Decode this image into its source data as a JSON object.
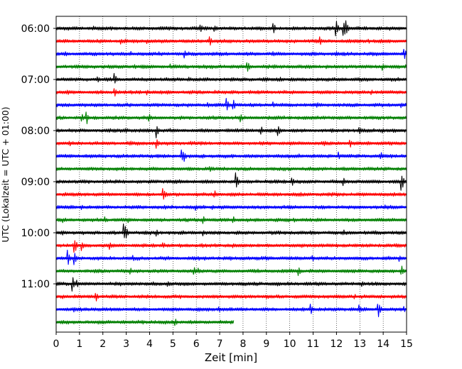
{
  "chart_data": {
    "type": "line",
    "title": "",
    "xlabel": "Zeit  [min]",
    "ylabel": "UTC (Lokalzeit = UTC + 01:00)",
    "xlim": [
      0,
      15
    ],
    "x_ticks": [
      0,
      1,
      2,
      3,
      4,
      5,
      6,
      7,
      8,
      9,
      10,
      11,
      12,
      13,
      14,
      15
    ],
    "y_tick_labels": [
      "06:00",
      "07:00",
      "08:00",
      "09:00",
      "10:00",
      "11:00"
    ],
    "y_tick_trace_index": [
      0,
      4,
      8,
      12,
      16,
      20
    ],
    "trace_minutes": 15,
    "grid": "vertical dotted",
    "color_cycle": [
      "#000000",
      "#ff0000",
      "#0000ff",
      "#008000"
    ],
    "traces": [
      {
        "start": "06:00",
        "end_min": 15,
        "color": "#000000",
        "events": [
          [
            6.2,
            0.55
          ],
          [
            6.8,
            0.45
          ],
          [
            9.3,
            0.7
          ],
          [
            12.0,
            0.9
          ],
          [
            12.4,
            1.0
          ],
          [
            12.3,
            0.8
          ],
          [
            1.6,
            0.25
          ],
          [
            5.4,
            0.2
          ],
          [
            14.3,
            0.25
          ]
        ]
      },
      {
        "start": "06:15",
        "end_min": 15,
        "color": "#ff0000",
        "events": [
          [
            0.5,
            0.3
          ],
          [
            2.8,
            0.35
          ],
          [
            3.9,
            0.35
          ],
          [
            6.6,
            0.55
          ],
          [
            11.3,
            0.6
          ],
          [
            13.4,
            0.25
          ],
          [
            9.0,
            0.2
          ]
        ]
      },
      {
        "start": "06:30",
        "end_min": 15,
        "color": "#0000ff",
        "events": [
          [
            0.4,
            0.35
          ],
          [
            3.2,
            0.3
          ],
          [
            4.4,
            0.25
          ],
          [
            5.5,
            0.55
          ],
          [
            9.3,
            0.3
          ],
          [
            12.0,
            0.25
          ],
          [
            14.9,
            0.7
          ]
        ]
      },
      {
        "start": "06:45",
        "end_min": 15,
        "color": "#008000",
        "events": [
          [
            1.3,
            0.25
          ],
          [
            3.4,
            0.3
          ],
          [
            4.9,
            0.35
          ],
          [
            8.2,
            0.7
          ],
          [
            11.6,
            0.3
          ],
          [
            14.0,
            0.45
          ]
        ]
      },
      {
        "start": "07:00",
        "end_min": 15,
        "color": "#000000",
        "events": [
          [
            1.8,
            0.3
          ],
          [
            2.5,
            0.7
          ],
          [
            5.7,
            0.25
          ],
          [
            9.6,
            0.3
          ],
          [
            13.0,
            0.2
          ]
        ]
      },
      {
        "start": "07:15",
        "end_min": 15,
        "color": "#ff0000",
        "events": [
          [
            0.5,
            0.35
          ],
          [
            2.5,
            0.55
          ],
          [
            3.9,
            0.3
          ],
          [
            6.8,
            0.25
          ],
          [
            11.7,
            0.3
          ],
          [
            13.5,
            0.3
          ]
        ]
      },
      {
        "start": "07:30",
        "end_min": 15,
        "color": "#0000ff",
        "events": [
          [
            6.5,
            0.45
          ],
          [
            7.3,
            0.75
          ],
          [
            7.6,
            0.55
          ],
          [
            9.3,
            0.4
          ],
          [
            11.2,
            0.3
          ],
          [
            14.8,
            0.3
          ]
        ]
      },
      {
        "start": "07:45",
        "end_min": 15,
        "color": "#008000",
        "events": [
          [
            1.3,
            0.85
          ],
          [
            1.1,
            0.5
          ],
          [
            4.0,
            0.45
          ],
          [
            7.9,
            0.6
          ],
          [
            14.2,
            0.25
          ]
        ]
      },
      {
        "start": "08:00",
        "end_min": 15,
        "color": "#000000",
        "events": [
          [
            3.0,
            0.4
          ],
          [
            4.3,
            0.8
          ],
          [
            4.9,
            0.3
          ],
          [
            8.8,
            0.45
          ],
          [
            9.5,
            0.9
          ],
          [
            13.0,
            0.55
          ],
          [
            14.0,
            0.3
          ]
        ]
      },
      {
        "start": "08:15",
        "end_min": 15,
        "color": "#ff0000",
        "events": [
          [
            0.6,
            0.35
          ],
          [
            3.2,
            0.3
          ],
          [
            4.3,
            0.75
          ],
          [
            5.8,
            0.3
          ],
          [
            11.5,
            0.4
          ],
          [
            12.6,
            0.45
          ]
        ]
      },
      {
        "start": "08:30",
        "end_min": 15,
        "color": "#0000ff",
        "events": [
          [
            5.4,
            0.7
          ],
          [
            5.5,
            0.6
          ],
          [
            6.3,
            0.35
          ],
          [
            12.1,
            0.45
          ],
          [
            13.9,
            0.5
          ],
          [
            10.4,
            0.25
          ]
        ]
      },
      {
        "start": "08:45",
        "end_min": 15,
        "color": "#008000",
        "events": [
          [
            6.6,
            0.35
          ],
          [
            14.1,
            0.25
          ],
          [
            3.0,
            0.2
          ]
        ]
      },
      {
        "start": "09:00",
        "end_min": 15,
        "color": "#000000",
        "events": [
          [
            7.7,
            1.0
          ],
          [
            10.1,
            0.7
          ],
          [
            12.3,
            0.6
          ],
          [
            14.8,
            1.0
          ],
          [
            2.9,
            0.3
          ],
          [
            5.1,
            0.3
          ]
        ]
      },
      {
        "start": "09:15",
        "end_min": 15,
        "color": "#ff0000",
        "events": [
          [
            4.6,
            0.9
          ],
          [
            6.8,
            0.4
          ],
          [
            10.5,
            0.3
          ],
          [
            13.2,
            0.25
          ],
          [
            0.4,
            0.25
          ]
        ]
      },
      {
        "start": "09:30",
        "end_min": 15,
        "color": "#0000ff",
        "events": [
          [
            1.1,
            0.3
          ],
          [
            6.0,
            0.35
          ],
          [
            6.7,
            0.3
          ],
          [
            10.0,
            0.25
          ],
          [
            14.1,
            0.25
          ]
        ]
      },
      {
        "start": "09:45",
        "end_min": 15,
        "color": "#008000",
        "events": [
          [
            0.3,
            0.3
          ],
          [
            2.1,
            0.4
          ],
          [
            3.1,
            0.35
          ],
          [
            6.3,
            0.45
          ],
          [
            7.6,
            0.4
          ],
          [
            10.2,
            0.3
          ],
          [
            13.7,
            0.25
          ]
        ]
      },
      {
        "start": "10:00",
        "end_min": 15,
        "color": "#000000",
        "events": [
          [
            2.9,
            1.0
          ],
          [
            3.0,
            0.75
          ],
          [
            4.3,
            0.45
          ],
          [
            6.3,
            0.35
          ],
          [
            12.3,
            0.4
          ],
          [
            0.3,
            0.3
          ]
        ]
      },
      {
        "start": "10:15",
        "end_min": 15,
        "color": "#ff0000",
        "events": [
          [
            0.8,
            0.9
          ],
          [
            1.1,
            0.6
          ],
          [
            2.3,
            0.45
          ],
          [
            4.6,
            0.4
          ],
          [
            7.6,
            0.3
          ],
          [
            11.4,
            0.3
          ],
          [
            14.6,
            0.25
          ]
        ]
      },
      {
        "start": "10:30",
        "end_min": 15,
        "color": "#0000ff",
        "events": [
          [
            0.5,
            0.95
          ],
          [
            0.8,
            0.7
          ],
          [
            3.3,
            0.35
          ],
          [
            6.1,
            0.3
          ],
          [
            11.0,
            0.3
          ],
          [
            14.7,
            0.35
          ]
        ]
      },
      {
        "start": "10:45",
        "end_min": 15,
        "color": "#008000",
        "events": [
          [
            3.2,
            0.35
          ],
          [
            5.9,
            0.6
          ],
          [
            6.1,
            0.45
          ],
          [
            10.4,
            0.5
          ],
          [
            14.8,
            0.6
          ]
        ]
      },
      {
        "start": "11:00",
        "end_min": 15,
        "color": "#000000",
        "events": [
          [
            0.7,
            0.85
          ],
          [
            0.9,
            0.5
          ],
          [
            4.8,
            0.35
          ],
          [
            9.5,
            0.3
          ],
          [
            13.1,
            0.45
          ]
        ]
      },
      {
        "start": "11:15",
        "end_min": 15,
        "color": "#ff0000",
        "events": [
          [
            0.3,
            0.35
          ],
          [
            1.7,
            0.6
          ],
          [
            5.3,
            0.3
          ],
          [
            9.0,
            0.25
          ],
          [
            12.8,
            0.25
          ]
        ]
      },
      {
        "start": "11:30",
        "end_min": 15,
        "color": "#0000ff",
        "events": [
          [
            0.8,
            0.3
          ],
          [
            7.0,
            0.3
          ],
          [
            10.9,
            0.85
          ],
          [
            13.0,
            0.5
          ],
          [
            13.8,
            1.0
          ],
          [
            14.9,
            0.35
          ]
        ]
      },
      {
        "start": "11:45",
        "end_min": 7.6,
        "color": "#008000",
        "events": [
          [
            0.3,
            0.3
          ],
          [
            3.7,
            0.35
          ],
          [
            5.1,
            0.55
          ],
          [
            1.4,
            0.2
          ]
        ]
      }
    ]
  }
}
